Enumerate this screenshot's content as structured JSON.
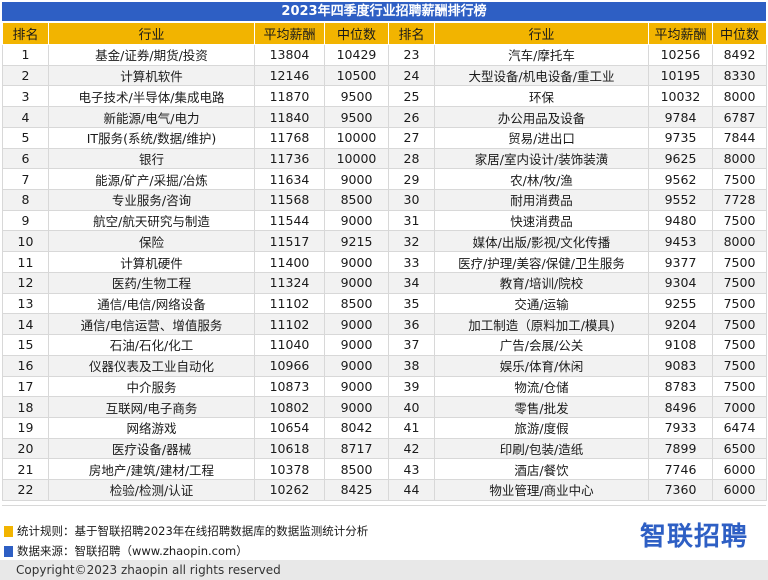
{
  "title": "2023年四季度行业招聘薪酬排行榜",
  "headers": [
    "排名",
    "行业",
    "平均薪酬",
    "中位数",
    "排名",
    "行业",
    "平均薪酬",
    "中位数"
  ],
  "rows": [
    [
      "1",
      "基金/证券/期货/投资",
      "13804",
      "10429",
      "23",
      "汽车/摩托车",
      "10256",
      "8492"
    ],
    [
      "2",
      "计算机软件",
      "12146",
      "10500",
      "24",
      "大型设备/机电设备/重工业",
      "10195",
      "8330"
    ],
    [
      "3",
      "电子技术/半导体/集成电路",
      "11870",
      "9500",
      "25",
      "环保",
      "10032",
      "8000"
    ],
    [
      "4",
      "新能源/电气/电力",
      "11840",
      "9500",
      "26",
      "办公用品及设备",
      "9784",
      "6787"
    ],
    [
      "5",
      "IT服务(系统/数据/维护)",
      "11768",
      "10000",
      "27",
      "贸易/进出口",
      "9735",
      "7844"
    ],
    [
      "6",
      "银行",
      "11736",
      "10000",
      "28",
      "家居/室内设计/装饰装潢",
      "9625",
      "8000"
    ],
    [
      "7",
      "能源/矿产/采掘/冶炼",
      "11634",
      "9000",
      "29",
      "农/林/牧/渔",
      "9562",
      "7500"
    ],
    [
      "8",
      "专业服务/咨询",
      "11568",
      "8500",
      "30",
      "耐用消费品",
      "9552",
      "7728"
    ],
    [
      "9",
      "航空/航天研究与制造",
      "11544",
      "9000",
      "31",
      "快速消费品",
      "9480",
      "7500"
    ],
    [
      "10",
      "保险",
      "11517",
      "9215",
      "32",
      "媒体/出版/影视/文化传播",
      "9453",
      "8000"
    ],
    [
      "11",
      "计算机硬件",
      "11400",
      "9000",
      "33",
      "医疗/护理/美容/保健/卫生服务",
      "9377",
      "7500"
    ],
    [
      "12",
      "医药/生物工程",
      "11324",
      "9000",
      "34",
      "教育/培训/院校",
      "9304",
      "7500"
    ],
    [
      "13",
      "通信/电信/网络设备",
      "11102",
      "8500",
      "35",
      "交通/运输",
      "9255",
      "7500"
    ],
    [
      "14",
      "通信/电信运营、增值服务",
      "11102",
      "9000",
      "36",
      "加工制造（原料加工/模具)",
      "9204",
      "7500"
    ],
    [
      "15",
      "石油/石化/化工",
      "11040",
      "9000",
      "37",
      "广告/会展/公关",
      "9108",
      "7500"
    ],
    [
      "16",
      "仪器仪表及工业自动化",
      "10966",
      "9000",
      "38",
      "娱乐/体育/休闲",
      "9083",
      "7500"
    ],
    [
      "17",
      "中介服务",
      "10873",
      "9000",
      "39",
      "物流/仓储",
      "8783",
      "7500"
    ],
    [
      "18",
      "互联网/电子商务",
      "10802",
      "9000",
      "40",
      "零售/批发",
      "8496",
      "7000"
    ],
    [
      "19",
      "网络游戏",
      "10654",
      "8042",
      "41",
      "旅游/度假",
      "7933",
      "6474"
    ],
    [
      "20",
      "医疗设备/器械",
      "10618",
      "8717",
      "42",
      "印刷/包装/造纸",
      "7899",
      "6500"
    ],
    [
      "21",
      "房地产/建筑/建材/工程",
      "10378",
      "8500",
      "43",
      "酒店/餐饮",
      "7746",
      "6000"
    ],
    [
      "22",
      "检验/检测/认证",
      "10262",
      "8425",
      "44",
      "物业管理/商业中心",
      "7360",
      "6000"
    ]
  ],
  "notes": {
    "rule": "统计规则：基于智联招聘2023年在线招聘数据库的数据监测统计分析",
    "source": "数据来源：智联招聘（www.zhaopin.com）"
  },
  "brand": "智联招聘",
  "copyright": "Copyright©2023 zhaopin all rights reserved",
  "colors": {
    "header_bar": "#2e5fc4",
    "column_header": "#f2b400",
    "legend_rule": "#f2b400",
    "legend_source": "#2e5fc4"
  }
}
